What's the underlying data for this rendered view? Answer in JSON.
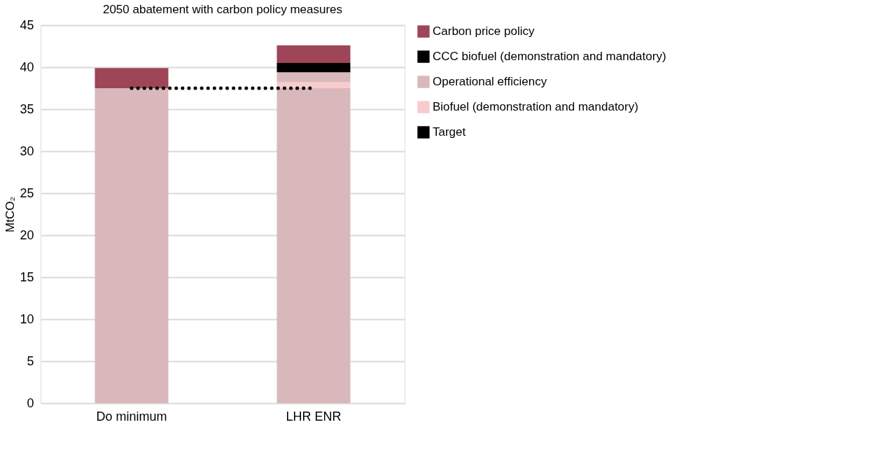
{
  "chart_data": {
    "type": "bar",
    "title": "2050 abatement with carbon policy measures",
    "ylabel": "MtCO₂",
    "categories": [
      "Do minimum",
      "LHR ENR"
    ],
    "stacked": true,
    "series": [
      {
        "color": "#d9b8bb",
        "values": [
          37.5,
          37.5
        ]
      },
      {
        "name": "Biofuel (demonstration and mandatory)",
        "color": "#f8cccc",
        "values": [
          0,
          0.7
        ]
      },
      {
        "name": "Operational efficiency",
        "color": "#d9b8bb",
        "values": [
          0,
          1.2
        ]
      },
      {
        "name": "CCC biofuel (demonstration and mandatory)",
        "color": "#000000",
        "values": [
          0,
          1.1
        ]
      },
      {
        "name": "Carbon price policy",
        "color": "#9e4558",
        "values": [
          2.4,
          2.1
        ]
      },
      {
        "name": "Target",
        "type": "line",
        "color": "#000000",
        "line_style": "dotted",
        "values": [
          37.5,
          37.5
        ]
      }
    ],
    "ylim": [
      0,
      45
    ],
    "yticks": [
      0,
      5,
      10,
      15,
      20,
      25,
      30,
      35,
      40,
      45
    ],
    "grid": "y",
    "legend": "right"
  }
}
